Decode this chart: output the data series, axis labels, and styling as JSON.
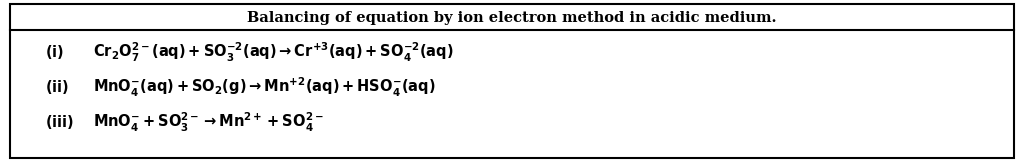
{
  "title": "Balancing of equation by ion electron method in acidic medium.",
  "background_color": "#ffffff",
  "border_color": "#000000",
  "text_color": "#000000",
  "title_fontsize": 10.5,
  "eq_fontsize": 10.5,
  "label_fontsize": 10.5,
  "figwidth": 10.24,
  "figheight": 1.62,
  "dpi": 100
}
